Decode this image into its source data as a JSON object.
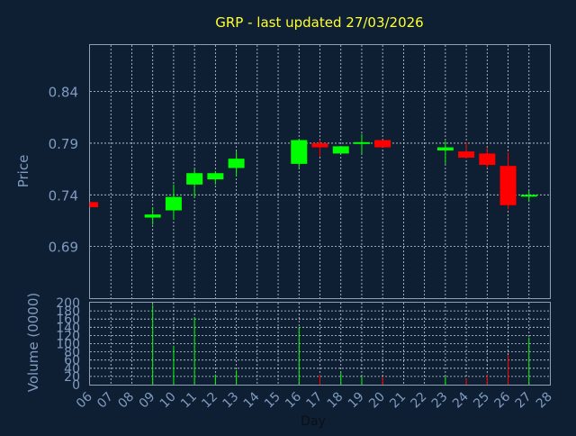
{
  "title": "GRP - last updated 27/03/2026",
  "chart_data": [
    {
      "type": "candlestick",
      "ylabel": "Price",
      "ylim": [
        0.64,
        0.885
      ],
      "yticks": [
        0.69,
        0.74,
        0.79,
        0.84
      ],
      "grid": true,
      "colors": {
        "up": "#00ff00",
        "down": "#ff0000"
      },
      "candles": [
        {
          "day": 6,
          "open": 0.733,
          "close": 0.728,
          "high": 0.733,
          "low": 0.728
        },
        {
          "day": 9,
          "open": 0.718,
          "close": 0.721,
          "high": 0.728,
          "low": 0.711
        },
        {
          "day": 10,
          "open": 0.725,
          "close": 0.738,
          "high": 0.75,
          "low": 0.716
        },
        {
          "day": 11,
          "open": 0.75,
          "close": 0.761,
          "high": 0.765,
          "low": 0.737
        },
        {
          "day": 12,
          "open": 0.755,
          "close": 0.761,
          "high": 0.763,
          "low": 0.75
        },
        {
          "day": 13,
          "open": 0.766,
          "close": 0.775,
          "high": 0.782,
          "low": 0.758
        },
        {
          "day": 16,
          "open": 0.77,
          "close": 0.793,
          "high": 0.794,
          "low": 0.766
        },
        {
          "day": 17,
          "open": 0.79,
          "close": 0.786,
          "high": 0.793,
          "low": 0.777
        },
        {
          "day": 18,
          "open": 0.78,
          "close": 0.787,
          "high": 0.787,
          "low": 0.78
        },
        {
          "day": 19,
          "open": 0.79,
          "close": 0.791,
          "high": 0.799,
          "low": 0.78
        },
        {
          "day": 20,
          "open": 0.793,
          "close": 0.786,
          "high": 0.793,
          "low": 0.786
        },
        {
          "day": 23,
          "open": 0.783,
          "close": 0.786,
          "high": 0.792,
          "low": 0.77
        },
        {
          "day": 24,
          "open": 0.782,
          "close": 0.776,
          "high": 0.791,
          "low": 0.775
        },
        {
          "day": 25,
          "open": 0.78,
          "close": 0.769,
          "high": 0.786,
          "low": 0.766
        },
        {
          "day": 26,
          "open": 0.768,
          "close": 0.73,
          "high": 0.781,
          "low": 0.726
        },
        {
          "day": 27,
          "open": 0.739,
          "close": 0.74,
          "high": 0.744,
          "low": 0.733
        }
      ]
    },
    {
      "type": "bar",
      "xlabel": "Day",
      "ylabel": "Volume (0000)",
      "ylim": [
        0,
        200
      ],
      "yticks": [
        0,
        20,
        40,
        60,
        80,
        100,
        120,
        140,
        160,
        180,
        200
      ],
      "x_ticks": [
        "06",
        "07",
        "08",
        "09",
        "10",
        "11",
        "12",
        "13",
        "14",
        "15",
        "16",
        "17",
        "18",
        "19",
        "20",
        "21",
        "22",
        "23",
        "24",
        "25",
        "26",
        "27",
        "28"
      ],
      "grid": true,
      "volumes": [
        {
          "day": 6,
          "value": 2,
          "direction": "down"
        },
        {
          "day": 9,
          "value": 195,
          "direction": "up"
        },
        {
          "day": 10,
          "value": 95,
          "direction": "up"
        },
        {
          "day": 11,
          "value": 165,
          "direction": "up"
        },
        {
          "day": 12,
          "value": 25,
          "direction": "up"
        },
        {
          "day": 13,
          "value": 35,
          "direction": "up"
        },
        {
          "day": 16,
          "value": 140,
          "direction": "up"
        },
        {
          "day": 17,
          "value": 25,
          "direction": "down"
        },
        {
          "day": 18,
          "value": 30,
          "direction": "up"
        },
        {
          "day": 19,
          "value": 20,
          "direction": "up"
        },
        {
          "day": 20,
          "value": 20,
          "direction": "down"
        },
        {
          "day": 23,
          "value": 20,
          "direction": "up"
        },
        {
          "day": 24,
          "value": 15,
          "direction": "down"
        },
        {
          "day": 25,
          "value": 25,
          "direction": "down"
        },
        {
          "day": 26,
          "value": 72,
          "direction": "down"
        },
        {
          "day": 27,
          "value": 115,
          "direction": "up"
        }
      ]
    }
  ]
}
